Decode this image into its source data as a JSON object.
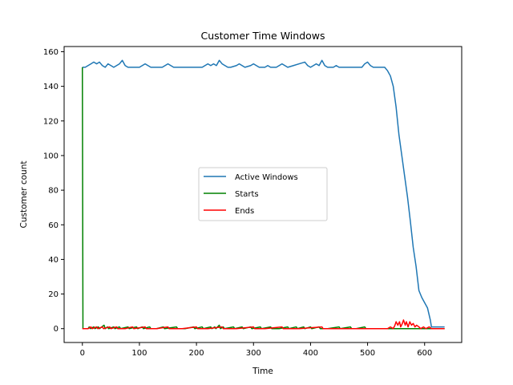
{
  "chart_data": {
    "type": "line",
    "title": "Customer Time Windows",
    "xlabel": "Time",
    "ylabel": "Customer count",
    "xlim": [
      -32,
      665
    ],
    "ylim": [
      -8,
      163
    ],
    "xticks": [
      0,
      100,
      200,
      300,
      400,
      500,
      600
    ],
    "yticks": [
      0,
      20,
      40,
      60,
      80,
      100,
      120,
      140,
      160
    ],
    "grid": false,
    "legend_position": "center",
    "series": [
      {
        "name": "Active Windows",
        "color": "#1f77b4",
        "points": [
          [
            0,
            151
          ],
          [
            5,
            151
          ],
          [
            10,
            152
          ],
          [
            15,
            153
          ],
          [
            20,
            154
          ],
          [
            25,
            153
          ],
          [
            30,
            154
          ],
          [
            35,
            152
          ],
          [
            40,
            151
          ],
          [
            45,
            153
          ],
          [
            50,
            152
          ],
          [
            55,
            151
          ],
          [
            60,
            152
          ],
          [
            65,
            153
          ],
          [
            70,
            155
          ],
          [
            75,
            152
          ],
          [
            80,
            151
          ],
          [
            90,
            151
          ],
          [
            100,
            151
          ],
          [
            105,
            152
          ],
          [
            110,
            153
          ],
          [
            115,
            152
          ],
          [
            120,
            151
          ],
          [
            130,
            151
          ],
          [
            140,
            151
          ],
          [
            145,
            152
          ],
          [
            150,
            153
          ],
          [
            155,
            152
          ],
          [
            160,
            151
          ],
          [
            170,
            151
          ],
          [
            180,
            151
          ],
          [
            190,
            151
          ],
          [
            200,
            151
          ],
          [
            210,
            151
          ],
          [
            215,
            152
          ],
          [
            220,
            153
          ],
          [
            225,
            152
          ],
          [
            230,
            153
          ],
          [
            235,
            152
          ],
          [
            240,
            155
          ],
          [
            245,
            153
          ],
          [
            250,
            152
          ],
          [
            255,
            151
          ],
          [
            260,
            151
          ],
          [
            270,
            152
          ],
          [
            275,
            153
          ],
          [
            280,
            152
          ],
          [
            285,
            151
          ],
          [
            295,
            152
          ],
          [
            300,
            153
          ],
          [
            305,
            152
          ],
          [
            310,
            151
          ],
          [
            320,
            151
          ],
          [
            325,
            152
          ],
          [
            330,
            151
          ],
          [
            340,
            151
          ],
          [
            345,
            152
          ],
          [
            350,
            153
          ],
          [
            355,
            152
          ],
          [
            360,
            151
          ],
          [
            370,
            152
          ],
          [
            380,
            153
          ],
          [
            390,
            154
          ],
          [
            395,
            152
          ],
          [
            400,
            151
          ],
          [
            405,
            152
          ],
          [
            410,
            153
          ],
          [
            415,
            152
          ],
          [
            420,
            155
          ],
          [
            425,
            152
          ],
          [
            430,
            151
          ],
          [
            440,
            151
          ],
          [
            445,
            152
          ],
          [
            450,
            151
          ],
          [
            460,
            151
          ],
          [
            470,
            151
          ],
          [
            480,
            151
          ],
          [
            490,
            151
          ],
          [
            495,
            153
          ],
          [
            500,
            154
          ],
          [
            505,
            152
          ],
          [
            510,
            151
          ],
          [
            520,
            151
          ],
          [
            530,
            151
          ],
          [
            535,
            149
          ],
          [
            540,
            146
          ],
          [
            545,
            140
          ],
          [
            550,
            128
          ],
          [
            555,
            112
          ],
          [
            560,
            100
          ],
          [
            565,
            88
          ],
          [
            570,
            76
          ],
          [
            575,
            62
          ],
          [
            580,
            47
          ],
          [
            585,
            36
          ],
          [
            590,
            22
          ],
          [
            595,
            18
          ],
          [
            600,
            15
          ],
          [
            605,
            12
          ],
          [
            610,
            5
          ],
          [
            612,
            1
          ],
          [
            620,
            1
          ],
          [
            630,
            1
          ],
          [
            635,
            1
          ]
        ]
      },
      {
        "name": "Starts",
        "color": "#008000",
        "points": [
          [
            0,
            151
          ],
          [
            1,
            0
          ],
          [
            10,
            0
          ],
          [
            12,
            1
          ],
          [
            14,
            0
          ],
          [
            20,
            1
          ],
          [
            22,
            0
          ],
          [
            28,
            1
          ],
          [
            30,
            0
          ],
          [
            38,
            2
          ],
          [
            40,
            0
          ],
          [
            44,
            1
          ],
          [
            46,
            0
          ],
          [
            55,
            1
          ],
          [
            57,
            0
          ],
          [
            65,
            1
          ],
          [
            67,
            0
          ],
          [
            80,
            1
          ],
          [
            82,
            0
          ],
          [
            95,
            1
          ],
          [
            97,
            0
          ],
          [
            105,
            1
          ],
          [
            107,
            0
          ],
          [
            118,
            1
          ],
          [
            120,
            0
          ],
          [
            130,
            0
          ],
          [
            142,
            1
          ],
          [
            144,
            0
          ],
          [
            165,
            1
          ],
          [
            167,
            0
          ],
          [
            180,
            0
          ],
          [
            195,
            1
          ],
          [
            197,
            0
          ],
          [
            210,
            1
          ],
          [
            212,
            0
          ],
          [
            225,
            1
          ],
          [
            227,
            0
          ],
          [
            232,
            1
          ],
          [
            234,
            0
          ],
          [
            240,
            2
          ],
          [
            242,
            0
          ],
          [
            247,
            1
          ],
          [
            249,
            0
          ],
          [
            265,
            1
          ],
          [
            267,
            0
          ],
          [
            280,
            1
          ],
          [
            282,
            0
          ],
          [
            295,
            1
          ],
          [
            297,
            0
          ],
          [
            312,
            1
          ],
          [
            314,
            0
          ],
          [
            330,
            1
          ],
          [
            332,
            0
          ],
          [
            345,
            0
          ],
          [
            360,
            1
          ],
          [
            362,
            0
          ],
          [
            375,
            1
          ],
          [
            377,
            0
          ],
          [
            388,
            1
          ],
          [
            390,
            0
          ],
          [
            400,
            1
          ],
          [
            402,
            0
          ],
          [
            415,
            1
          ],
          [
            417,
            0
          ],
          [
            430,
            0
          ],
          [
            450,
            1
          ],
          [
            452,
            0
          ],
          [
            470,
            1
          ],
          [
            472,
            0
          ],
          [
            480,
            0
          ],
          [
            495,
            1
          ],
          [
            497,
            0
          ],
          [
            505,
            0
          ],
          [
            520,
            0
          ],
          [
            540,
            0
          ],
          [
            560,
            0
          ],
          [
            580,
            0
          ],
          [
            600,
            0
          ],
          [
            620,
            0
          ],
          [
            635,
            0
          ]
        ]
      },
      {
        "name": "Ends",
        "color": "#ff0000",
        "points": [
          [
            0,
            0
          ],
          [
            10,
            0
          ],
          [
            15,
            1
          ],
          [
            17,
            0
          ],
          [
            25,
            1
          ],
          [
            27,
            0
          ],
          [
            35,
            1
          ],
          [
            37,
            0
          ],
          [
            48,
            1
          ],
          [
            50,
            0
          ],
          [
            60,
            1
          ],
          [
            62,
            0
          ],
          [
            75,
            0
          ],
          [
            88,
            1
          ],
          [
            90,
            0
          ],
          [
            110,
            1
          ],
          [
            112,
            0
          ],
          [
            130,
            0
          ],
          [
            150,
            1
          ],
          [
            152,
            0
          ],
          [
            175,
            0
          ],
          [
            200,
            1
          ],
          [
            202,
            0
          ],
          [
            220,
            0
          ],
          [
            245,
            1
          ],
          [
            247,
            0
          ],
          [
            270,
            0
          ],
          [
            300,
            1
          ],
          [
            302,
            0
          ],
          [
            320,
            0
          ],
          [
            350,
            1
          ],
          [
            352,
            0
          ],
          [
            380,
            0
          ],
          [
            420,
            1
          ],
          [
            422,
            0
          ],
          [
            450,
            0
          ],
          [
            480,
            0
          ],
          [
            500,
            0
          ],
          [
            520,
            0
          ],
          [
            535,
            0
          ],
          [
            540,
            1
          ],
          [
            545,
            0
          ],
          [
            548,
            2
          ],
          [
            550,
            4
          ],
          [
            553,
            2
          ],
          [
            556,
            4
          ],
          [
            558,
            1
          ],
          [
            561,
            3
          ],
          [
            563,
            5
          ],
          [
            566,
            2
          ],
          [
            568,
            4
          ],
          [
            571,
            1
          ],
          [
            574,
            4
          ],
          [
            577,
            2
          ],
          [
            580,
            3
          ],
          [
            583,
            1
          ],
          [
            586,
            2
          ],
          [
            590,
            1
          ],
          [
            593,
            0
          ],
          [
            598,
            1
          ],
          [
            602,
            0
          ],
          [
            608,
            1
          ],
          [
            612,
            0
          ],
          [
            620,
            0
          ],
          [
            630,
            0
          ],
          [
            635,
            0
          ]
        ]
      }
    ]
  }
}
